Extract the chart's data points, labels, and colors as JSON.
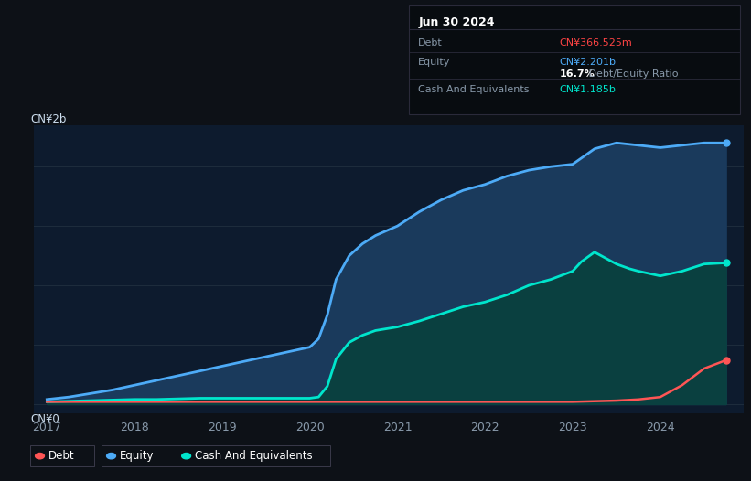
{
  "background_color": "#0d1117",
  "plot_bg_color": "#0d1b2e",
  "title_box": {
    "date": "Jun 30 2024",
    "debt_label": "Debt",
    "debt_value": "CN¥366.525m",
    "debt_color": "#ff4444",
    "equity_label": "Equity",
    "equity_value": "CN¥2.201b",
    "equity_color": "#4dabf7",
    "ratio_value": "16.7%",
    "ratio_label": " Debt/Equity Ratio",
    "ratio_color_pct": "#ffffff",
    "ratio_color_label": "#8899aa",
    "cash_label": "Cash And Equivalents",
    "cash_value": "CN¥1.185b",
    "cash_color": "#00e5cc"
  },
  "ylabel_top": "CN¥2b",
  "ylabel_bottom": "CN¥0",
  "xlim": [
    2016.85,
    2024.95
  ],
  "ylim": [
    -0.08,
    2.35
  ],
  "grid_color": "#1e2d3d",
  "years_ticks": [
    2017,
    2018,
    2019,
    2020,
    2021,
    2022,
    2023,
    2024
  ],
  "equity_x": [
    2017.0,
    2017.25,
    2017.5,
    2017.75,
    2018.0,
    2018.25,
    2018.5,
    2018.75,
    2019.0,
    2019.25,
    2019.5,
    2019.75,
    2020.0,
    2020.1,
    2020.2,
    2020.3,
    2020.45,
    2020.6,
    2020.75,
    2021.0,
    2021.25,
    2021.5,
    2021.75,
    2022.0,
    2022.25,
    2022.5,
    2022.75,
    2023.0,
    2023.25,
    2023.5,
    2023.75,
    2024.0,
    2024.25,
    2024.5,
    2024.75
  ],
  "equity_y": [
    0.04,
    0.06,
    0.09,
    0.12,
    0.16,
    0.2,
    0.24,
    0.28,
    0.32,
    0.36,
    0.4,
    0.44,
    0.48,
    0.55,
    0.75,
    1.05,
    1.25,
    1.35,
    1.42,
    1.5,
    1.62,
    1.72,
    1.8,
    1.85,
    1.92,
    1.97,
    2.0,
    2.02,
    2.15,
    2.2,
    2.18,
    2.16,
    2.18,
    2.2,
    2.2
  ],
  "cash_x": [
    2017.0,
    2017.25,
    2017.5,
    2017.75,
    2018.0,
    2018.25,
    2018.5,
    2018.75,
    2019.0,
    2019.25,
    2019.5,
    2019.75,
    2020.0,
    2020.1,
    2020.2,
    2020.3,
    2020.45,
    2020.6,
    2020.75,
    2021.0,
    2021.25,
    2021.5,
    2021.75,
    2022.0,
    2022.25,
    2022.5,
    2022.75,
    2023.0,
    2023.1,
    2023.25,
    2023.4,
    2023.5,
    2023.65,
    2023.75,
    2024.0,
    2024.25,
    2024.5,
    2024.75
  ],
  "cash_y": [
    0.02,
    0.025,
    0.03,
    0.035,
    0.04,
    0.04,
    0.045,
    0.05,
    0.05,
    0.05,
    0.05,
    0.05,
    0.05,
    0.06,
    0.15,
    0.38,
    0.52,
    0.58,
    0.62,
    0.65,
    0.7,
    0.76,
    0.82,
    0.86,
    0.92,
    1.0,
    1.05,
    1.12,
    1.2,
    1.28,
    1.22,
    1.18,
    1.14,
    1.12,
    1.08,
    1.12,
    1.18,
    1.19
  ],
  "debt_x": [
    2017.0,
    2017.5,
    2018.0,
    2018.5,
    2019.0,
    2019.5,
    2020.0,
    2020.5,
    2021.0,
    2021.5,
    2022.0,
    2022.5,
    2023.0,
    2023.25,
    2023.5,
    2023.75,
    2024.0,
    2024.25,
    2024.5,
    2024.75
  ],
  "debt_y": [
    0.02,
    0.02,
    0.02,
    0.02,
    0.02,
    0.02,
    0.02,
    0.02,
    0.02,
    0.02,
    0.02,
    0.02,
    0.02,
    0.025,
    0.03,
    0.04,
    0.06,
    0.16,
    0.3,
    0.37
  ],
  "equity_color": "#4dabf7",
  "equity_fill": "#1a3a5c",
  "cash_color": "#00e5cc",
  "cash_fill": "#0a4040",
  "debt_color": "#ff5555",
  "legend": [
    {
      "label": "Debt",
      "color": "#ff5555"
    },
    {
      "label": "Equity",
      "color": "#4dabf7"
    },
    {
      "label": "Cash And Equivalents",
      "color": "#00e5cc"
    }
  ]
}
